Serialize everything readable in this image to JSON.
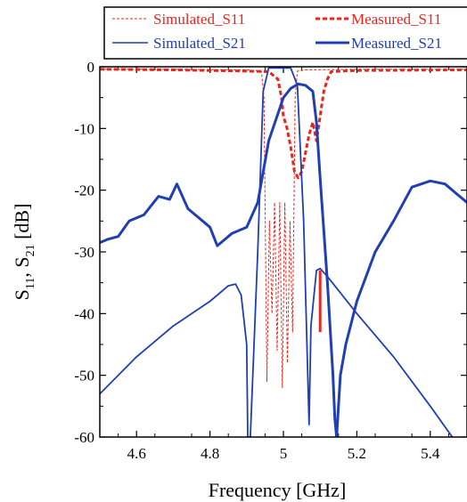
{
  "chart_data": {
    "type": "line",
    "xlabel": "Frequency [GHz]",
    "ylabel": {
      "base": "S",
      "sub1": "11",
      "sep": ", ",
      "sub2": "21",
      "unit": " [dB]"
    },
    "xlim": [
      4.5,
      5.5
    ],
    "ylim": [
      -60,
      0
    ],
    "x_ticks": [
      4.6,
      4.8,
      5,
      5.2,
      5.4
    ],
    "y_ticks": [
      0,
      -10,
      -20,
      -30,
      -40,
      -50,
      -60
    ],
    "grid": false,
    "legend_position": "top",
    "series": [
      {
        "name": "Simulated_S11",
        "color": "#e8251e",
        "style": "thin-dashed",
        "points": [
          [
            4.5,
            -0.4
          ],
          [
            4.7,
            -0.4
          ],
          [
            4.9,
            -0.5
          ],
          [
            4.94,
            -0.7
          ],
          [
            4.947,
            -5
          ],
          [
            4.955,
            -51
          ],
          [
            4.962,
            -25
          ],
          [
            4.969,
            -40
          ],
          [
            4.976,
            -22
          ],
          [
            4.983,
            -46
          ],
          [
            4.99,
            -22
          ],
          [
            4.997,
            -52
          ],
          [
            5.004,
            -22
          ],
          [
            5.011,
            -48
          ],
          [
            5.018,
            -25
          ],
          [
            5.025,
            -43
          ],
          [
            5.032,
            -5
          ],
          [
            5.038,
            -0.7
          ],
          [
            5.06,
            -0.5
          ],
          [
            5.2,
            -0.4
          ],
          [
            5.5,
            -0.4
          ]
        ]
      },
      {
        "name": "Measured_S11",
        "color": "#e8251e",
        "style": "thick-dashed",
        "points": [
          [
            4.5,
            -0.4
          ],
          [
            4.7,
            -0.5
          ],
          [
            4.9,
            -0.7
          ],
          [
            4.96,
            -0.8
          ],
          [
            4.985,
            -2
          ],
          [
            4.995,
            -5
          ],
          [
            5.0,
            -8
          ],
          [
            5.01,
            -10
          ],
          [
            5.02,
            -13
          ],
          [
            5.03,
            -17
          ],
          [
            5.04,
            -18
          ],
          [
            5.05,
            -17
          ],
          [
            5.06,
            -14
          ],
          [
            5.07,
            -11
          ],
          [
            5.08,
            -9
          ],
          [
            5.09,
            -12
          ],
          [
            5.1,
            -8
          ],
          [
            5.11,
            -4
          ],
          [
            5.12,
            -2
          ],
          [
            5.13,
            -0.8
          ],
          [
            5.2,
            -0.6
          ],
          [
            5.5,
            -0.5
          ]
        ]
      },
      {
        "name": "Simulated_S21",
        "color": "#1f3fb2",
        "style": "thin-solid",
        "points": [
          [
            4.5,
            -53
          ],
          [
            4.6,
            -47
          ],
          [
            4.7,
            -42
          ],
          [
            4.8,
            -38
          ],
          [
            4.85,
            -35.5
          ],
          [
            4.87,
            -35.2
          ],
          [
            4.885,
            -37
          ],
          [
            4.9,
            -45
          ],
          [
            4.903,
            -60
          ],
          [
            4.91,
            -60
          ],
          [
            4.93,
            -30
          ],
          [
            4.945,
            -4
          ],
          [
            4.96,
            -0.2
          ],
          [
            5.02,
            -0.2
          ],
          [
            5.038,
            -3
          ],
          [
            5.055,
            -25
          ],
          [
            5.07,
            -58
          ],
          [
            5.075,
            -42
          ],
          [
            5.09,
            -33
          ],
          [
            5.1,
            -32.7
          ],
          [
            5.12,
            -34
          ],
          [
            5.2,
            -40
          ],
          [
            5.3,
            -47
          ],
          [
            5.4,
            -55
          ],
          [
            5.46,
            -60
          ]
        ]
      },
      {
        "name": "Measured_S21",
        "color": "#1f3fb2",
        "style": "thick-solid",
        "points": [
          [
            4.5,
            -28.5
          ],
          [
            4.52,
            -28
          ],
          [
            4.55,
            -27.5
          ],
          [
            4.58,
            -25
          ],
          [
            4.62,
            -24
          ],
          [
            4.66,
            -21
          ],
          [
            4.69,
            -21.5
          ],
          [
            4.71,
            -19
          ],
          [
            4.74,
            -23
          ],
          [
            4.78,
            -25
          ],
          [
            4.8,
            -26
          ],
          [
            4.82,
            -29
          ],
          [
            4.84,
            -28
          ],
          [
            4.86,
            -27
          ],
          [
            4.9,
            -26
          ],
          [
            4.93,
            -22
          ],
          [
            4.96,
            -12
          ],
          [
            5.0,
            -5
          ],
          [
            5.02,
            -3.5
          ],
          [
            5.04,
            -2.8
          ],
          [
            5.06,
            -3
          ],
          [
            5.08,
            -4
          ],
          [
            5.09,
            -9
          ],
          [
            5.1,
            -18
          ],
          [
            5.12,
            -35
          ],
          [
            5.135,
            -50
          ],
          [
            5.14,
            -57
          ],
          [
            5.145,
            -60
          ],
          [
            5.155,
            -50
          ],
          [
            5.17,
            -45
          ],
          [
            5.2,
            -38
          ],
          [
            5.25,
            -30
          ],
          [
            5.3,
            -25
          ],
          [
            5.35,
            -19.5
          ],
          [
            5.4,
            -18.5
          ],
          [
            5.44,
            -19
          ],
          [
            5.47,
            -20.5
          ],
          [
            5.5,
            -22
          ]
        ]
      }
    ],
    "annotations": [
      {
        "type": "vertical-line",
        "x": 5.1,
        "y_from": -33,
        "y_to": -43,
        "color": "#e8251e"
      }
    ]
  }
}
